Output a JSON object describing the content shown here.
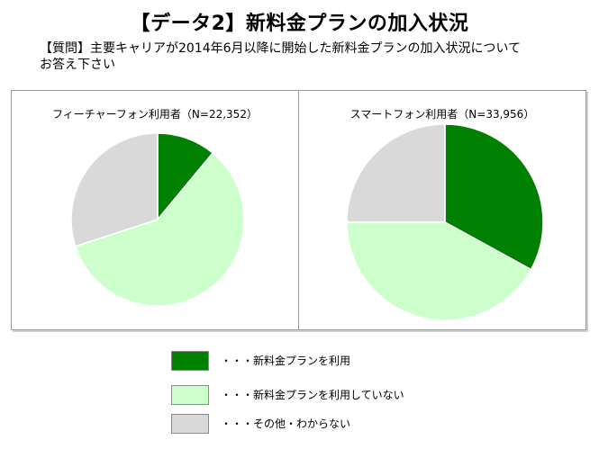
{
  "title": "【データ2】新料金プランの加入状況",
  "question": {
    "line1": "【質問】主要キャリアが2014年6月以降に開始した新料金プランの加入状況について",
    "line2": "お答え下さい"
  },
  "colors": {
    "using": "#008000",
    "not_using": "#ccffcc",
    "other": "#d9d9d9",
    "slice_border": "#ffffff"
  },
  "legend": [
    {
      "label": "・・・新料金プランを利用",
      "color_key": "using"
    },
    {
      "label": "・・・新料金プランを利用していない",
      "color_key": "not_using"
    },
    {
      "label": "・・・その他・わからない",
      "color_key": "other"
    }
  ],
  "chart_data": [
    {
      "type": "pie",
      "title": "フィーチャーフォン利用者（N=22,352）",
      "categories": [
        "新料金プランを利用",
        "新料金プランを利用していない",
        "その他・わからない"
      ],
      "values": [
        11,
        59,
        30
      ],
      "start": "12 o'clock, clockwise"
    },
    {
      "type": "pie",
      "title": "スマートフォン利用者（N=33,956）",
      "categories": [
        "新料金プランを利用",
        "新料金プランを利用していない",
        "その他・わからない"
      ],
      "values": [
        33,
        42,
        25
      ],
      "start": "12 o'clock, clockwise"
    }
  ]
}
